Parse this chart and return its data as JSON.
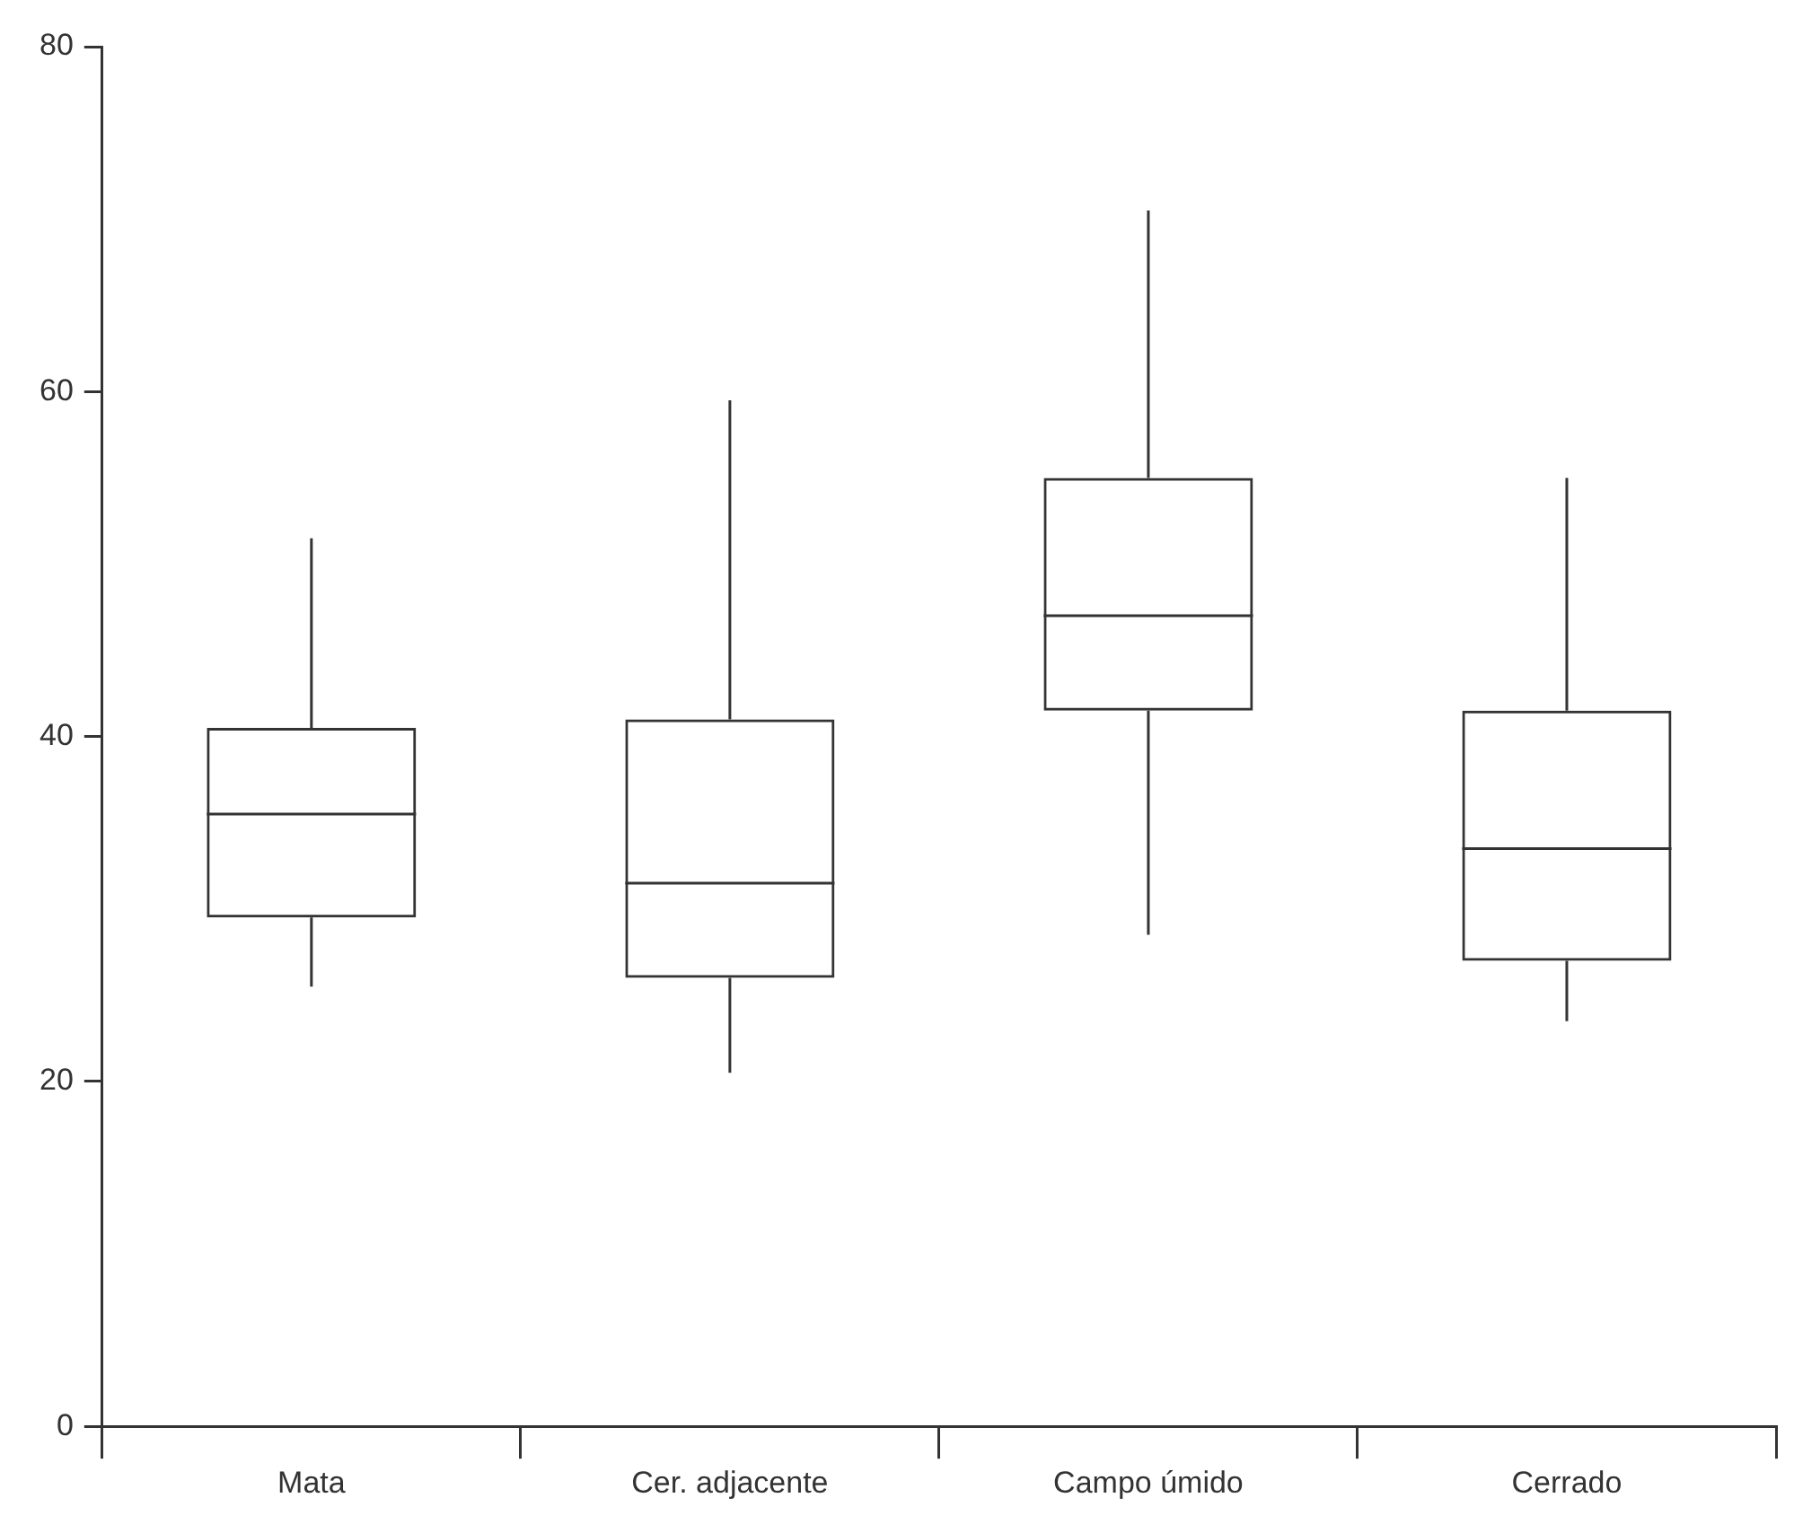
{
  "chart_data": {
    "type": "box",
    "categories": [
      "Mata",
      "Cer. adjacente",
      "Campo úmido",
      "Cerrado"
    ],
    "boxes": [
      {
        "low": 25.5,
        "q1": 29.5,
        "median": 35.5,
        "q3": 40.5,
        "high": 51.5
      },
      {
        "low": 20.5,
        "q1": 26,
        "median": 31.5,
        "q3": 41,
        "high": 59.5
      },
      {
        "low": 28.5,
        "q1": 41.5,
        "median": 47,
        "q3": 55,
        "high": 70.5
      },
      {
        "low": 23.5,
        "q1": 27,
        "median": 33.5,
        "q3": 41.5,
        "high": 55
      }
    ],
    "color": "#333333",
    "ylim": [
      0,
      80
    ],
    "yticks": [
      0,
      20,
      40,
      60,
      80
    ]
  }
}
